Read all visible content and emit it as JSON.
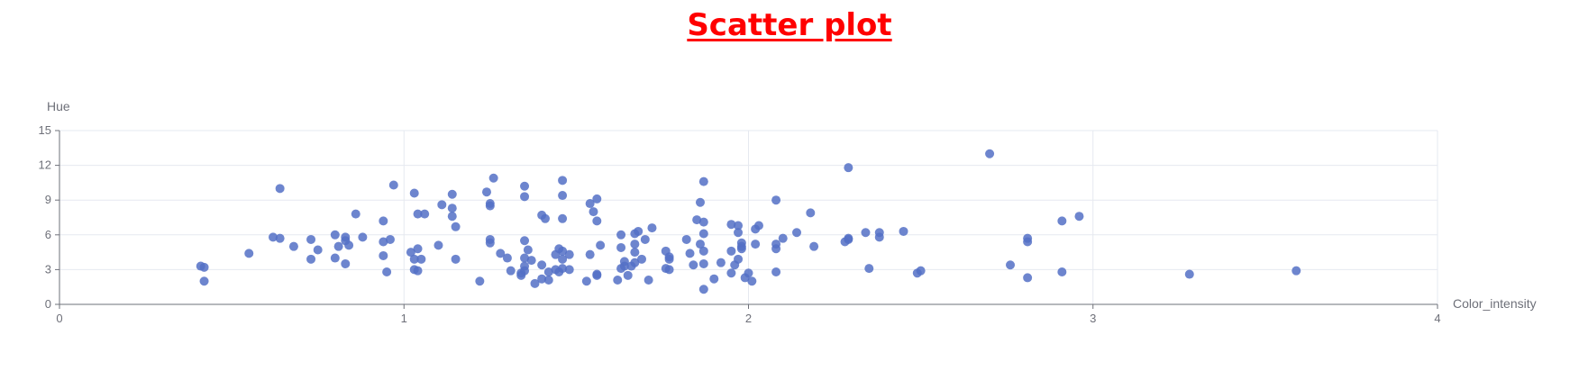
{
  "chart_data": {
    "type": "scatter",
    "title": "Scatter plot",
    "xlabel": "Color_intensity",
    "ylabel": "Hue",
    "xlim": [
      0,
      4
    ],
    "ylim": [
      0,
      15
    ],
    "xticks": [
      0,
      1,
      2,
      3,
      4
    ],
    "yticks": [
      0,
      3,
      6,
      9,
      12,
      15
    ],
    "grid": true,
    "legend": "none",
    "colors": {
      "point": "#5470c6",
      "title": "#ff0000",
      "grid": "#e6e9f0",
      "axis": "#6e7079"
    },
    "points": [
      [
        0.41,
        3.3
      ],
      [
        0.42,
        3.2
      ],
      [
        0.42,
        2.0
      ],
      [
        0.55,
        4.4
      ],
      [
        0.62,
        5.8
      ],
      [
        0.64,
        5.7
      ],
      [
        0.64,
        10.0
      ],
      [
        0.68,
        5.0
      ],
      [
        0.73,
        3.9
      ],
      [
        0.73,
        5.6
      ],
      [
        0.75,
        4.7
      ],
      [
        0.8,
        4.0
      ],
      [
        0.8,
        6.0
      ],
      [
        0.81,
        5.0
      ],
      [
        0.83,
        3.5
      ],
      [
        0.83,
        5.8
      ],
      [
        0.83,
        5.5
      ],
      [
        0.84,
        5.1
      ],
      [
        0.86,
        7.8
      ],
      [
        0.88,
        5.8
      ],
      [
        0.94,
        5.4
      ],
      [
        0.94,
        4.2
      ],
      [
        0.94,
        7.2
      ],
      [
        0.95,
        2.8
      ],
      [
        0.96,
        5.6
      ],
      [
        0.97,
        10.3
      ],
      [
        1.02,
        4.5
      ],
      [
        1.03,
        9.6
      ],
      [
        1.03,
        3.9
      ],
      [
        1.03,
        3.0
      ],
      [
        1.04,
        4.8
      ],
      [
        1.04,
        7.8
      ],
      [
        1.04,
        2.9
      ],
      [
        1.05,
        3.9
      ],
      [
        1.06,
        7.8
      ],
      [
        1.1,
        5.1
      ],
      [
        1.11,
        8.6
      ],
      [
        1.14,
        9.5
      ],
      [
        1.14,
        8.3
      ],
      [
        1.14,
        7.6
      ],
      [
        1.15,
        6.7
      ],
      [
        1.15,
        3.9
      ],
      [
        1.22,
        2.0
      ],
      [
        1.24,
        9.7
      ],
      [
        1.25,
        8.7
      ],
      [
        1.25,
        8.5
      ],
      [
        1.25,
        5.6
      ],
      [
        1.25,
        5.3
      ],
      [
        1.26,
        10.9
      ],
      [
        1.28,
        4.4
      ],
      [
        1.3,
        4.0
      ],
      [
        1.31,
        2.9
      ],
      [
        1.34,
        2.7
      ],
      [
        1.34,
        2.5
      ],
      [
        1.35,
        10.2
      ],
      [
        1.35,
        9.3
      ],
      [
        1.35,
        5.5
      ],
      [
        1.35,
        4.0
      ],
      [
        1.35,
        3.3
      ],
      [
        1.35,
        2.9
      ],
      [
        1.36,
        4.7
      ],
      [
        1.37,
        3.8
      ],
      [
        1.38,
        1.8
      ],
      [
        1.4,
        3.4
      ],
      [
        1.4,
        2.2
      ],
      [
        1.4,
        7.7
      ],
      [
        1.41,
        7.4
      ],
      [
        1.42,
        2.1
      ],
      [
        1.42,
        2.8
      ],
      [
        1.44,
        3.0
      ],
      [
        1.44,
        4.3
      ],
      [
        1.45,
        4.8
      ],
      [
        1.45,
        2.8
      ],
      [
        1.46,
        10.7
      ],
      [
        1.46,
        9.4
      ],
      [
        1.46,
        7.4
      ],
      [
        1.46,
        4.6
      ],
      [
        1.46,
        3.9
      ],
      [
        1.46,
        3.1
      ],
      [
        1.48,
        3.0
      ],
      [
        1.48,
        4.3
      ],
      [
        1.53,
        2.0
      ],
      [
        1.54,
        8.7
      ],
      [
        1.54,
        4.3
      ],
      [
        1.55,
        8.0
      ],
      [
        1.56,
        9.1
      ],
      [
        1.56,
        7.2
      ],
      [
        1.56,
        2.6
      ],
      [
        1.56,
        2.5
      ],
      [
        1.57,
        5.1
      ],
      [
        1.62,
        2.1
      ],
      [
        1.63,
        6.0
      ],
      [
        1.63,
        4.9
      ],
      [
        1.63,
        3.1
      ],
      [
        1.64,
        3.7
      ],
      [
        1.64,
        3.3
      ],
      [
        1.65,
        2.5
      ],
      [
        1.66,
        3.3
      ],
      [
        1.67,
        6.1
      ],
      [
        1.67,
        5.2
      ],
      [
        1.67,
        4.5
      ],
      [
        1.67,
        3.6
      ],
      [
        1.68,
        6.3
      ],
      [
        1.69,
        3.9
      ],
      [
        1.7,
        5.6
      ],
      [
        1.71,
        2.1
      ],
      [
        1.72,
        6.6
      ],
      [
        1.76,
        4.6
      ],
      [
        1.76,
        3.1
      ],
      [
        1.77,
        4.1
      ],
      [
        1.77,
        3.9
      ],
      [
        1.77,
        3.0
      ],
      [
        1.82,
        5.6
      ],
      [
        1.83,
        4.4
      ],
      [
        1.84,
        3.4
      ],
      [
        1.85,
        7.3
      ],
      [
        1.86,
        8.8
      ],
      [
        1.86,
        5.2
      ],
      [
        1.87,
        10.6
      ],
      [
        1.87,
        7.1
      ],
      [
        1.87,
        6.1
      ],
      [
        1.87,
        4.6
      ],
      [
        1.87,
        3.5
      ],
      [
        1.87,
        1.3
      ],
      [
        1.9,
        2.2
      ],
      [
        1.92,
        3.6
      ],
      [
        1.95,
        6.9
      ],
      [
        1.95,
        4.6
      ],
      [
        1.95,
        2.7
      ],
      [
        1.96,
        3.4
      ],
      [
        1.97,
        6.8
      ],
      [
        1.97,
        6.2
      ],
      [
        1.97,
        3.9
      ],
      [
        1.98,
        5.3
      ],
      [
        1.98,
        5.0
      ],
      [
        1.98,
        4.8
      ],
      [
        1.99,
        2.3
      ],
      [
        2.0,
        2.7
      ],
      [
        2.01,
        2.0
      ],
      [
        2.02,
        5.2
      ],
      [
        2.02,
        6.5
      ],
      [
        2.03,
        6.8
      ],
      [
        2.08,
        9.0
      ],
      [
        2.08,
        5.2
      ],
      [
        2.08,
        4.8
      ],
      [
        2.08,
        2.8
      ],
      [
        2.1,
        5.7
      ],
      [
        2.14,
        6.2
      ],
      [
        2.18,
        7.9
      ],
      [
        2.19,
        5.0
      ],
      [
        2.28,
        5.4
      ],
      [
        2.29,
        5.7
      ],
      [
        2.29,
        5.6
      ],
      [
        2.29,
        11.8
      ],
      [
        2.34,
        6.2
      ],
      [
        2.35,
        3.1
      ],
      [
        2.38,
        6.2
      ],
      [
        2.38,
        5.8
      ],
      [
        2.45,
        6.3
      ],
      [
        2.49,
        2.7
      ],
      [
        2.5,
        2.9
      ],
      [
        2.7,
        13.0
      ],
      [
        2.76,
        3.4
      ],
      [
        2.81,
        5.7
      ],
      [
        2.81,
        5.4
      ],
      [
        2.81,
        2.3
      ],
      [
        2.91,
        7.2
      ],
      [
        2.91,
        2.8
      ],
      [
        2.96,
        7.6
      ],
      [
        3.28,
        2.6
      ],
      [
        3.59,
        2.9
      ]
    ]
  }
}
